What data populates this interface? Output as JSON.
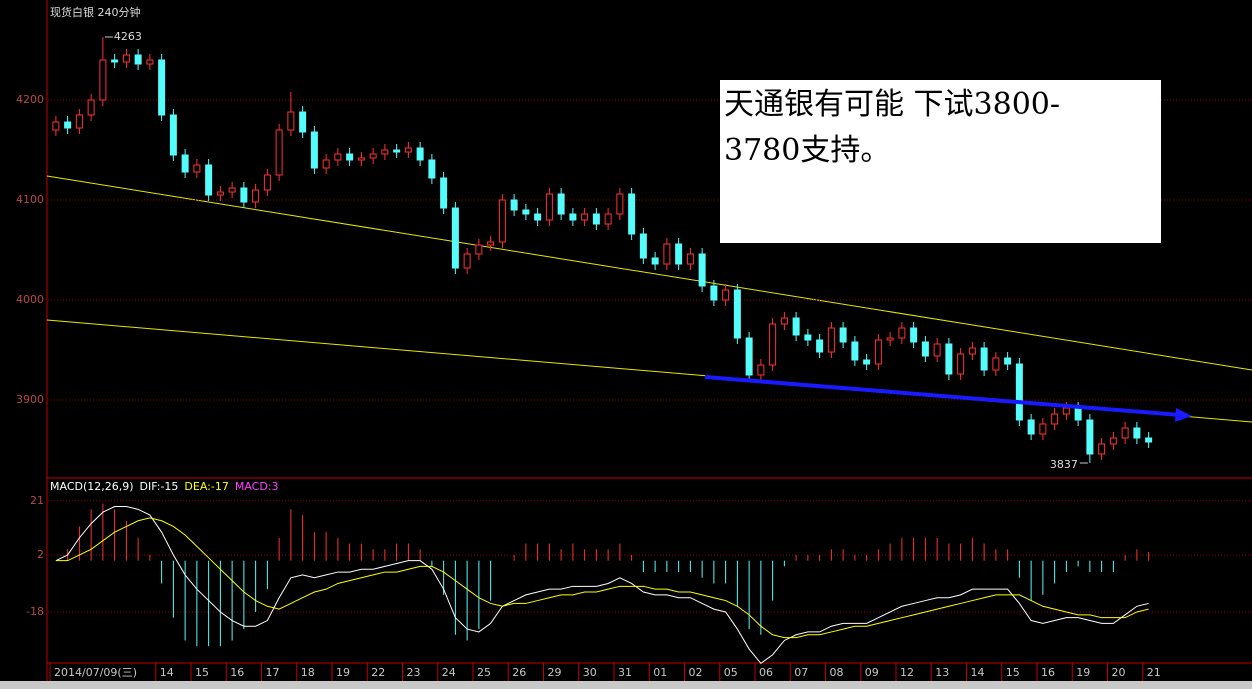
{
  "chart_data": [
    {
      "type": "candlestick",
      "title": "现货白银 240分钟",
      "ylim": [
        3822,
        4295
      ],
      "yticks": [
        3900,
        4000,
        4100,
        4200
      ],
      "grid": true,
      "up_color": "#ff3232",
      "down_color": "#54fcfc",
      "open": [
        4170,
        4178,
        4172,
        4185,
        4200,
        4240,
        4238,
        4245,
        4236,
        4240,
        4185,
        4145,
        4128,
        4135,
        4105,
        4108,
        4112,
        4098,
        4110,
        4125,
        4170,
        4188,
        4168,
        4132,
        4140,
        4146,
        4140,
        4142,
        4146,
        4150,
        4148,
        4152,
        4140,
        4122,
        4092,
        4032,
        4046,
        4055,
        4058,
        4100,
        4090,
        4086,
        4080,
        4106,
        4086,
        4080,
        4086,
        4076,
        4086,
        4106,
        4066,
        4042,
        4036,
        4056,
        4036,
        4046,
        4014,
        4000,
        4010,
        3962,
        3925,
        3935,
        3976,
        3982,
        3965,
        3960,
        3948,
        3972,
        3958,
        3940,
        3936,
        3960,
        3962,
        3972,
        3958,
        3944,
        3956,
        3926,
        3946,
        3952,
        3930,
        3942,
        3936,
        3880,
        3866,
        3876,
        3886,
        3892,
        3880,
        3846,
        3856,
        3862,
        3872,
        3862
      ],
      "high": [
        4184,
        4184,
        4191,
        4206,
        4263,
        4246,
        4251,
        4251,
        4246,
        4246,
        4191,
        4151,
        4141,
        4141,
        4114,
        4118,
        4118,
        4116,
        4131,
        4176,
        4208,
        4194,
        4174,
        4146,
        4152,
        4152,
        4148,
        4152,
        4156,
        4156,
        4158,
        4158,
        4146,
        4128,
        4098,
        4052,
        4061,
        4064,
        4106,
        4106,
        4096,
        4092,
        4112,
        4112,
        4092,
        4092,
        4092,
        4092,
        4112,
        4112,
        4072,
        4048,
        4062,
        4062,
        4052,
        4052,
        4020,
        4016,
        4016,
        3968,
        3941,
        3982,
        3988,
        3988,
        3971,
        3966,
        3978,
        3978,
        3964,
        3946,
        3966,
        3968,
        3978,
        3978,
        3964,
        3962,
        3962,
        3952,
        3958,
        3958,
        3948,
        3948,
        3942,
        3886,
        3882,
        3892,
        3898,
        3898,
        3886,
        3862,
        3868,
        3878,
        3878,
        3868
      ],
      "low": [
        4164,
        4166,
        4166,
        4179,
        4194,
        4232,
        4232,
        4230,
        4230,
        4179,
        4139,
        4122,
        4122,
        4099,
        4099,
        4102,
        4092,
        4092,
        4104,
        4119,
        4164,
        4162,
        4126,
        4126,
        4134,
        4134,
        4134,
        4136,
        4140,
        4142,
        4142,
        4134,
        4116,
        4086,
        4026,
        4026,
        4040,
        4049,
        4052,
        4084,
        4080,
        4074,
        4074,
        4080,
        4074,
        4074,
        4070,
        4070,
        4080,
        4060,
        4036,
        4030,
        4030,
        4030,
        4030,
        4008,
        3994,
        3994,
        3956,
        3919,
        3919,
        3929,
        3970,
        3959,
        3954,
        3942,
        3942,
        3952,
        3934,
        3930,
        3930,
        3954,
        3956,
        3952,
        3938,
        3938,
        3920,
        3920,
        3940,
        3924,
        3924,
        3930,
        3874,
        3860,
        3860,
        3870,
        3880,
        3874,
        3837,
        3840,
        3850,
        3856,
        3856,
        3852
      ],
      "close": [
        4178,
        4172,
        4185,
        4200,
        4240,
        4238,
        4245,
        4236,
        4240,
        4185,
        4145,
        4128,
        4135,
        4105,
        4108,
        4112,
        4098,
        4110,
        4125,
        4170,
        4188,
        4168,
        4132,
        4140,
        4146,
        4140,
        4142,
        4146,
        4150,
        4148,
        4152,
        4140,
        4122,
        4092,
        4032,
        4046,
        4055,
        4058,
        4100,
        4090,
        4086,
        4080,
        4106,
        4086,
        4080,
        4086,
        4076,
        4086,
        4106,
        4066,
        4042,
        4036,
        4056,
        4036,
        4046,
        4014,
        4000,
        4010,
        3962,
        3925,
        3935,
        3976,
        3982,
        3965,
        3960,
        3948,
        3972,
        3958,
        3940,
        3936,
        3960,
        3962,
        3972,
        3958,
        3944,
        3956,
        3926,
        3946,
        3952,
        3930,
        3942,
        3936,
        3880,
        3866,
        3876,
        3886,
        3892,
        3880,
        3846,
        3856,
        3862,
        3872,
        3862,
        3858
      ],
      "max_label": 4263,
      "min_label": 3837,
      "note": [
        "天通银有可能 下试3800-",
        "3780支持。"
      ]
    },
    {
      "type": "macd",
      "legend": [
        {
          "text": "MACD(12,26,9)",
          "color": "#ffffff"
        },
        {
          "text": "DIF:-15",
          "color": "#ffffff"
        },
        {
          "text": "DEA:-17",
          "color": "#ffff00"
        },
        {
          "text": "MACD:3",
          "color": "#ff40ff"
        }
      ],
      "ylim": [
        -35.9,
        28.3
      ],
      "yticks": [
        -18,
        2,
        21
      ],
      "grid": true,
      "categories": [
        "2014/07/09(三)",
        null,
        null,
        null,
        null,
        null,
        null,
        null,
        null,
        "14",
        null,
        null,
        "15",
        null,
        null,
        "16",
        null,
        null,
        "17",
        null,
        null,
        "18",
        null,
        null,
        "19",
        null,
        null,
        "22",
        null,
        null,
        "23",
        null,
        null,
        "24",
        null,
        null,
        "25",
        null,
        null,
        "26",
        null,
        null,
        "29",
        null,
        null,
        "30",
        null,
        null,
        "31",
        null,
        null,
        "01",
        null,
        null,
        "02",
        null,
        null,
        "05",
        null,
        null,
        "06",
        null,
        null,
        "07",
        null,
        null,
        "08",
        null,
        null,
        "09",
        null,
        null,
        "12",
        null,
        null,
        "13",
        null,
        null,
        "14",
        null,
        null,
        "15",
        null,
        null,
        "16",
        null,
        null,
        "19",
        null,
        null,
        "20",
        null,
        null,
        "21"
      ],
      "series": [
        {
          "color": "#ffffff",
          "values": [
            0,
            2,
            8,
            13,
            17,
            19,
            19,
            18,
            16,
            10,
            2,
            -5,
            -10,
            -14,
            -18,
            -21,
            -23,
            -23,
            -21,
            -13,
            -6,
            -5,
            -6,
            -5,
            -4,
            -4,
            -3,
            -3,
            -2,
            -1,
            0,
            0,
            -3,
            -10,
            -20,
            -24,
            -25,
            -22,
            -16,
            -14,
            -12,
            -11,
            -10,
            -10,
            -9,
            -9,
            -9,
            -8,
            -6,
            -8,
            -11,
            -12,
            -12,
            -13,
            -13,
            -15,
            -17,
            -18,
            -24,
            -31,
            -36,
            -33,
            -28,
            -26,
            -25,
            -25,
            -23,
            -22,
            -22,
            -22,
            -20,
            -18,
            -16,
            -15,
            -14,
            -13,
            -13,
            -12,
            -10,
            -10,
            -10,
            -10,
            -15,
            -21,
            -22,
            -21,
            -20,
            -20,
            -21,
            -22,
            -22,
            -19,
            -16,
            -15
          ]
        },
        {
          "color": "#ffff00",
          "values": [
            0,
            0,
            2,
            4,
            7,
            10,
            12,
            14,
            15,
            14,
            12,
            9,
            5,
            1,
            -3,
            -7,
            -11,
            -14,
            -16,
            -17,
            -15,
            -13,
            -11,
            -10,
            -8,
            -7,
            -6,
            -5,
            -4,
            -4,
            -3,
            -2,
            -2,
            -4,
            -7,
            -10,
            -13,
            -15,
            -16,
            -15,
            -15,
            -14,
            -13,
            -12,
            -12,
            -11,
            -11,
            -10,
            -9,
            -9,
            -9,
            -10,
            -10,
            -11,
            -11,
            -12,
            -13,
            -14,
            -16,
            -19,
            -23,
            -26,
            -27,
            -27,
            -26,
            -26,
            -25,
            -24,
            -23,
            -23,
            -22,
            -21,
            -20,
            -19,
            -18,
            -17,
            -16,
            -15,
            -14,
            -13,
            -12,
            -12,
            -12,
            -14,
            -16,
            -17,
            -18,
            -19,
            -19,
            -20,
            -20,
            -20,
            -18,
            -17
          ]
        }
      ],
      "hist": [
        0,
        4,
        12,
        18,
        20,
        18,
        14,
        8,
        2,
        -8,
        -20,
        -28,
        -30,
        -30,
        -30,
        -28,
        -24,
        -18,
        -10,
        8,
        18,
        16,
        10,
        10,
        8,
        6,
        6,
        4,
        4,
        6,
        6,
        4,
        -2,
        -12,
        -26,
        -28,
        -24,
        -14,
        0,
        2,
        6,
        6,
        6,
        4,
        6,
        4,
        4,
        4,
        6,
        2,
        -4,
        -4,
        -4,
        -4,
        -4,
        -6,
        -8,
        -8,
        -16,
        -24,
        -26,
        -14,
        -2,
        2,
        2,
        2,
        4,
        4,
        2,
        2,
        4,
        6,
        8,
        8,
        8,
        8,
        6,
        6,
        8,
        6,
        4,
        4,
        -6,
        -14,
        -12,
        -8,
        -4,
        -2,
        -4,
        -4,
        -4,
        2,
        4,
        3
      ],
      "up_color": "#ff3232",
      "down_color": "#54fcfc"
    }
  ]
}
